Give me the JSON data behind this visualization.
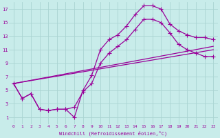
{
  "xlabel": "Windchill (Refroidissement éolien,°C)",
  "bg_color": "#c8ecea",
  "grid_color": "#aad4d2",
  "line_color": "#990099",
  "xlim": [
    -0.5,
    23.5
  ],
  "ylim": [
    0,
    18
  ],
  "xticks": [
    0,
    1,
    2,
    3,
    4,
    5,
    6,
    7,
    8,
    9,
    10,
    11,
    12,
    13,
    14,
    15,
    16,
    17,
    18,
    19,
    20,
    21,
    22,
    23
  ],
  "yticks": [
    1,
    3,
    5,
    7,
    9,
    11,
    13,
    15,
    17
  ],
  "line1_x": [
    0,
    1,
    2,
    3,
    4,
    5,
    6,
    7,
    8,
    9,
    10,
    11,
    12,
    13,
    14,
    15,
    16,
    17,
    18,
    19,
    20,
    21,
    22,
    23
  ],
  "line1_y": [
    6.0,
    3.8,
    4.5,
    2.2,
    2.0,
    2.2,
    2.2,
    1.0,
    5.0,
    7.2,
    11.0,
    12.5,
    13.2,
    14.5,
    16.2,
    17.5,
    17.5,
    17.0,
    14.8,
    13.8,
    13.2,
    12.8,
    12.8,
    12.5
  ],
  "line2_x": [
    0,
    1,
    2,
    3,
    4,
    5,
    6,
    7,
    8,
    9,
    10,
    11,
    12,
    13,
    14,
    15,
    16,
    17,
    18,
    19,
    20,
    21,
    22,
    23
  ],
  "line2_y": [
    6.0,
    3.8,
    4.5,
    2.2,
    2.0,
    2.2,
    2.2,
    2.5,
    4.8,
    6.0,
    9.0,
    10.5,
    11.5,
    12.5,
    14.0,
    15.5,
    15.5,
    15.0,
    13.5,
    11.8,
    11.0,
    10.5,
    10.0,
    10.0
  ],
  "line3_x": [
    0,
    23
  ],
  "line3_y": [
    6.0,
    11.5
  ],
  "line4_x": [
    0,
    23
  ],
  "line4_y": [
    6.0,
    11.0
  ],
  "markersize": 2.5,
  "linewidth": 0.9
}
